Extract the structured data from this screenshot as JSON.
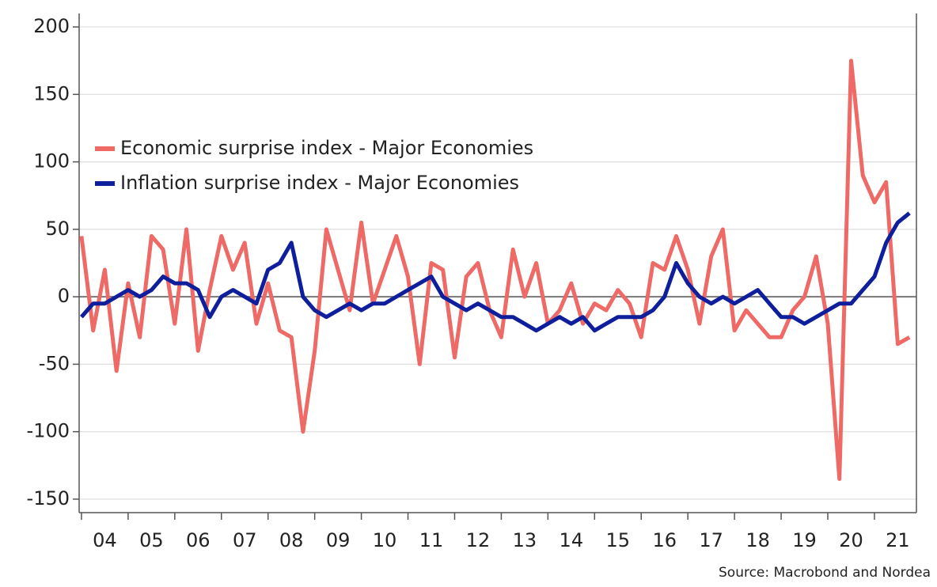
{
  "chart_data": {
    "type": "line",
    "source": "Source: Macrobond and Nordea",
    "x": [
      2004.0,
      2004.25,
      2004.5,
      2004.75,
      2005.0,
      2005.25,
      2005.5,
      2005.75,
      2006.0,
      2006.25,
      2006.5,
      2006.75,
      2007.0,
      2007.25,
      2007.5,
      2007.75,
      2008.0,
      2008.25,
      2008.5,
      2008.75,
      2009.0,
      2009.25,
      2009.5,
      2009.75,
      2010.0,
      2010.25,
      2010.5,
      2010.75,
      2011.0,
      2011.25,
      2011.5,
      2011.75,
      2012.0,
      2012.25,
      2012.5,
      2012.75,
      2013.0,
      2013.25,
      2013.5,
      2013.75,
      2014.0,
      2014.25,
      2014.5,
      2014.75,
      2015.0,
      2015.25,
      2015.5,
      2015.75,
      2016.0,
      2016.25,
      2016.5,
      2016.75,
      2017.0,
      2017.25,
      2017.5,
      2017.75,
      2018.0,
      2018.25,
      2018.5,
      2018.75,
      2019.0,
      2019.25,
      2019.5,
      2019.75,
      2020.0,
      2020.25,
      2020.5,
      2020.75,
      2021.0,
      2021.25,
      2021.5,
      2021.75
    ],
    "series": [
      {
        "name": "Economic surprise index - Major Economies",
        "color": "#ee6a66",
        "values": [
          45,
          -25,
          20,
          -55,
          10,
          -30,
          45,
          35,
          -20,
          50,
          -40,
          5,
          45,
          20,
          40,
          -20,
          10,
          -25,
          -30,
          -100,
          -40,
          50,
          20,
          -10,
          55,
          -5,
          20,
          45,
          15,
          -50,
          25,
          20,
          -45,
          15,
          25,
          -10,
          -30,
          35,
          0,
          25,
          -20,
          -10,
          10,
          -20,
          -5,
          -10,
          5,
          -5,
          -30,
          25,
          20,
          45,
          20,
          -20,
          30,
          50,
          -25,
          -10,
          -20,
          -30,
          -30,
          -10,
          0,
          30,
          -20,
          -135,
          175,
          90,
          70,
          85,
          -35,
          -30
        ]
      },
      {
        "name": "Inflation surprise index - Major Economies",
        "color": "#0f1f9c",
        "values": [
          -15,
          -5,
          -5,
          0,
          5,
          0,
          5,
          15,
          10,
          10,
          5,
          -15,
          0,
          5,
          0,
          -5,
          20,
          25,
          40,
          0,
          -10,
          -15,
          -10,
          -5,
          -10,
          -5,
          -5,
          0,
          5,
          10,
          15,
          0,
          -5,
          -10,
          -5,
          -10,
          -15,
          -15,
          -20,
          -25,
          -20,
          -15,
          -20,
          -15,
          -25,
          -20,
          -15,
          -15,
          -15,
          -10,
          0,
          25,
          10,
          0,
          -5,
          0,
          -5,
          0,
          5,
          -5,
          -15,
          -15,
          -20,
          -15,
          -10,
          -5,
          -5,
          5,
          15,
          40,
          55,
          62
        ]
      }
    ],
    "xlim": [
      2003.95,
      2021.9
    ],
    "xticks": [
      {
        "value": 2004.5,
        "label": "04"
      },
      {
        "value": 2005.5,
        "label": "05"
      },
      {
        "value": 2006.5,
        "label": "06"
      },
      {
        "value": 2007.5,
        "label": "07"
      },
      {
        "value": 2008.5,
        "label": "08"
      },
      {
        "value": 2009.5,
        "label": "09"
      },
      {
        "value": 2010.5,
        "label": "10"
      },
      {
        "value": 2011.5,
        "label": "11"
      },
      {
        "value": 2012.5,
        "label": "12"
      },
      {
        "value": 2013.5,
        "label": "13"
      },
      {
        "value": 2014.5,
        "label": "14"
      },
      {
        "value": 2015.5,
        "label": "15"
      },
      {
        "value": 2016.5,
        "label": "16"
      },
      {
        "value": 2017.5,
        "label": "17"
      },
      {
        "value": 2018.5,
        "label": "18"
      },
      {
        "value": 2019.5,
        "label": "19"
      },
      {
        "value": 2020.5,
        "label": "20"
      },
      {
        "value": 2021.5,
        "label": "21"
      }
    ],
    "ylim": [
      -160,
      210
    ],
    "yticks": [
      -150,
      -100,
      -50,
      0,
      50,
      100,
      150,
      200
    ],
    "grid": true,
    "legend": "upper left"
  }
}
